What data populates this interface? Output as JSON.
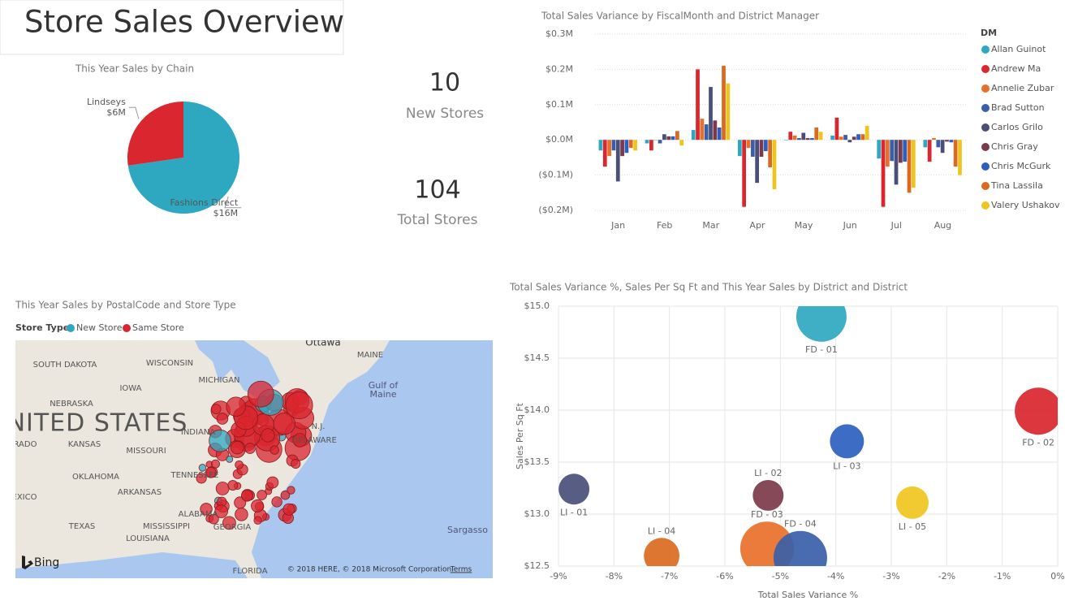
{
  "header": {
    "title": "Store Sales Overview"
  },
  "cards": [
    {
      "value": 10,
      "label": "New Stores"
    },
    {
      "value": 104,
      "label": "Total Stores"
    }
  ],
  "chart_data": [
    {
      "type": "pie",
      "title": "This Year Sales by Chain",
      "categories": [
        "Fashions Direct",
        "Lindseys"
      ],
      "values": [
        16,
        6
      ],
      "value_labels": [
        "$16M",
        "$6M"
      ],
      "colors": [
        "#2ea8c0",
        "#d9262f"
      ]
    },
    {
      "type": "bar",
      "title": "Total Sales Variance by FiscalMonth and District Manager",
      "legend_title": "DM",
      "legend": "right",
      "grid": true,
      "categories": [
        "Jan",
        "Feb",
        "Mar",
        "Apr",
        "May",
        "Jun",
        "Jul",
        "Aug"
      ],
      "ylim": [
        -0.2,
        0.3
      ],
      "yticks": [
        {
          "value": 0.3,
          "label": "$0.3M"
        },
        {
          "value": 0.2,
          "label": "$0.2M"
        },
        {
          "value": 0.1,
          "label": "$0.1M"
        },
        {
          "value": 0,
          "label": "$0.0M"
        },
        {
          "value": -0.1,
          "label": "($0.1M)"
        },
        {
          "value": -0.2,
          "label": "($0.2M)"
        }
      ],
      "series": [
        {
          "name": "Allan Guinot",
          "color": "#2ea8c0",
          "values": [
            -0.03,
            -0.01,
            0.028,
            -0.046,
            0,
            0.012,
            -0.053,
            -0.021
          ]
        },
        {
          "name": "Andrew Ma",
          "color": "#d9262f",
          "values": [
            -0.076,
            -0.03,
            0.2,
            -0.19,
            0.023,
            0.063,
            -0.19,
            -0.062
          ]
        },
        {
          "name": "Annelie Zubar",
          "color": "#e8702a",
          "values": [
            -0.046,
            0,
            0.06,
            -0.023,
            0.012,
            0.009,
            -0.076,
            0.005
          ]
        },
        {
          "name": "Brad Sutton",
          "color": "#3a5ea8",
          "values": [
            -0.03,
            -0.01,
            0.044,
            -0.048,
            0.005,
            0.014,
            -0.06,
            -0.021
          ]
        },
        {
          "name": "Carlos Grilo",
          "color": "#4a4f7a",
          "values": [
            -0.118,
            0.016,
            0.15,
            -0.122,
            0.02,
            -0.007,
            -0.127,
            -0.037
          ]
        },
        {
          "name": "Chris Gray",
          "color": "#7b3a4a",
          "values": [
            -0.046,
            0.01,
            0.055,
            -0.048,
            0.005,
            0.009,
            -0.065,
            -0.005
          ]
        },
        {
          "name": "Chris McGurk",
          "color": "#2c5fc0",
          "values": [
            -0.037,
            0.01,
            0.035,
            -0.032,
            0.005,
            0.016,
            -0.062,
            -0.007
          ]
        },
        {
          "name": "Tina Lassila",
          "color": "#d96a20",
          "values": [
            -0.023,
            0.025,
            0.21,
            -0.078,
            0.035,
            0.016,
            -0.15,
            -0.076
          ]
        },
        {
          "name": "Valery Ushakov",
          "color": "#f0c420",
          "values": [
            -0.03,
            -0.016,
            0.16,
            -0.14,
            0.023,
            0.04,
            -0.136,
            -0.1
          ]
        }
      ]
    },
    {
      "type": "scatter",
      "title": "Total Sales Variance %, Sales Per Sq Ft and This Year Sales by District and District",
      "x_label": "Total Sales Variance %",
      "y_label": "Sales Per Sq Ft",
      "grid": true,
      "xlim": [
        -9,
        0
      ],
      "ylim": [
        12.5,
        15
      ],
      "xticks": [
        {
          "value": -9,
          "label": "-9%"
        },
        {
          "value": -8,
          "label": "-8%"
        },
        {
          "value": -7,
          "label": "-7%"
        },
        {
          "value": -6,
          "label": "-6%"
        },
        {
          "value": -5,
          "label": "-5%"
        },
        {
          "value": -4,
          "label": "-4%"
        },
        {
          "value": -3,
          "label": "-3%"
        },
        {
          "value": -2,
          "label": "-2%"
        },
        {
          "value": -1,
          "label": "-1%"
        },
        {
          "value": 0,
          "label": "0%"
        }
      ],
      "yticks": [
        {
          "value": 12.5,
          "label": "$12.5"
        },
        {
          "value": 13,
          "label": "$13.0"
        },
        {
          "value": 13.5,
          "label": "$13.5"
        },
        {
          "value": 14,
          "label": "$14.0"
        },
        {
          "value": 14.5,
          "label": "$14.5"
        },
        {
          "value": 15,
          "label": "$15.0"
        }
      ],
      "points": [
        {
          "name": "FD - 01",
          "x": -4.26,
          "y": 14.9,
          "size": 9.6,
          "color": "#2ea8c0"
        },
        {
          "name": "FD - 02",
          "x": -0.35,
          "y": 13.99,
          "size": 8.4,
          "color": "#d9262f"
        },
        {
          "name": "LI - 03",
          "x": -3.8,
          "y": 13.7,
          "size": 4.4,
          "color": "#2c5fc0"
        },
        {
          "name": "LI - 01",
          "x": -8.72,
          "y": 13.24,
          "size": 3.6,
          "color": "#4a4f7a"
        },
        {
          "name": "LI - 02",
          "x": -5.22,
          "y": 13.18,
          "size": 3.6,
          "color": "#7b3a4a"
        },
        {
          "name": "FD - 03",
          "x": -5.24,
          "y": 12.67,
          "size": 10.9,
          "color": "#e8702a"
        },
        {
          "name": "FD - 04",
          "x": -4.64,
          "y": 12.58,
          "size": 10.9,
          "color": "#3a5ea8"
        },
        {
          "name": "LI - 04",
          "x": -7.14,
          "y": 12.6,
          "size": 4.8,
          "color": "#d96a20"
        },
        {
          "name": "LI - 05",
          "x": -2.62,
          "y": 13.11,
          "size": 4.0,
          "color": "#f0c420"
        }
      ]
    }
  ],
  "map": {
    "title": "This Year Sales by PostalCode and Store Type",
    "legend_title": "Store Type",
    "legend": [
      {
        "name": "New Store",
        "color": "#2ea8c0"
      },
      {
        "name": "Same Store",
        "color": "#d9262f"
      }
    ],
    "labels": [
      "Ottawa",
      "MAINE",
      "WISCONSIN",
      "SOUTH DAKOTA",
      "MICHIGAN",
      "IOWA",
      "Gulf of",
      "Maine",
      "NEBRASKA",
      "NITED STATES",
      "RADO",
      "KANSAS",
      "INDIANA",
      "MISSOURI",
      "N.J.",
      "DELAWARE",
      "OKLAHOMA",
      "TENNESSEE",
      "ARKANSAS",
      "EXICO",
      "ALABAMA",
      "TEXAS",
      "MISSISSIPPI",
      "GEORGIA",
      "LOUISIANA",
      "Sargasso",
      "FLORIDA"
    ],
    "attribution": "© 2018 HERE, © 2018 Microsoft Corporation",
    "terms": "Terms",
    "brand": "Bing"
  }
}
